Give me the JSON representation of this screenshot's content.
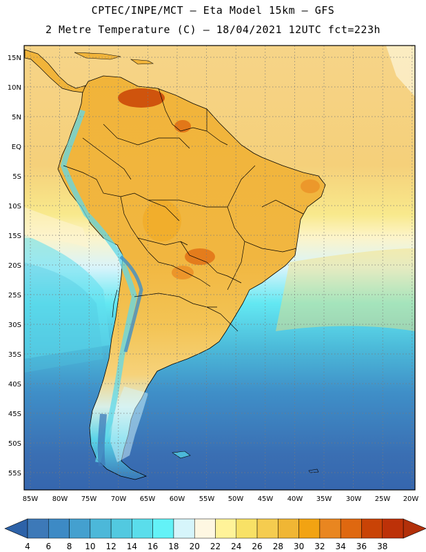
{
  "header": {
    "title_line1": "CPTEC/INPE/MCT –  Eta Model 15km – GFS",
    "title_line2": "2 Metre Temperature (C) – 18/04/2021 12UTC fct=223h"
  },
  "axes": {
    "lat_labels": [
      "15N",
      "10N",
      "5N",
      "EQ",
      "5S",
      "10S",
      "15S",
      "20S",
      "25S",
      "30S",
      "35S",
      "40S",
      "45S",
      "50S",
      "55S"
    ],
    "lon_labels": [
      "85W",
      "80W",
      "75W",
      "70W",
      "65W",
      "60W",
      "55W",
      "50W",
      "45W",
      "40W",
      "35W",
      "30W",
      "25W",
      "20W"
    ]
  },
  "colorbar": {
    "values": [
      "4",
      "6",
      "8",
      "10",
      "12",
      "14",
      "16",
      "18",
      "20",
      "22",
      "24",
      "26",
      "28",
      "30",
      "32",
      "34",
      "36",
      "38"
    ],
    "colors": [
      "#3d79b8",
      "#3d8ac5",
      "#44a0cf",
      "#4cb8d9",
      "#52c9e0",
      "#5addeb",
      "#63f2f7",
      "#d6f5fb",
      "#fef7e2",
      "#fff399",
      "#f8e166",
      "#f5cc4f",
      "#f0b634",
      "#f2a312",
      "#e98620",
      "#df6810",
      "#c94306",
      "#bd3108"
    ],
    "low_arrow_color": "#2d62a8",
    "high_arrow_color": "#b2300a"
  }
}
